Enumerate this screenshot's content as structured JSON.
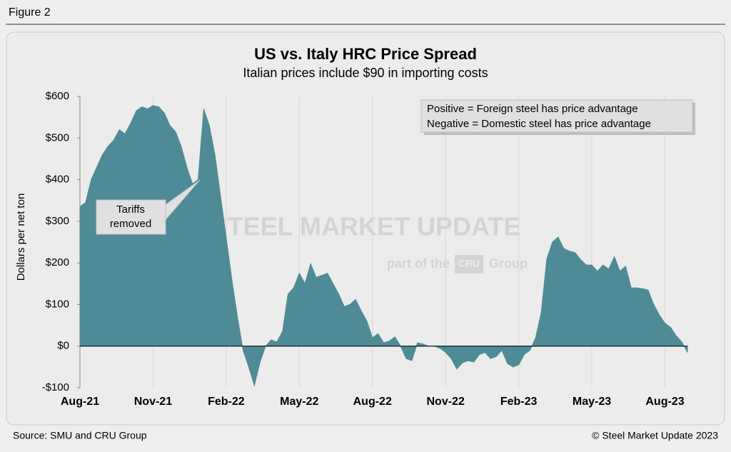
{
  "figure_label": "Figure 2",
  "chart_data": {
    "type": "area",
    "title": "US vs. Italy HRC Price Spread",
    "subtitle": "Italian prices include $90 in importing costs",
    "y_label": "Dollars per net ton",
    "categories": [
      "Aug-21",
      null,
      null,
      null,
      null,
      null,
      null,
      null,
      null,
      null,
      null,
      null,
      null,
      "Nov-21",
      null,
      null,
      null,
      null,
      null,
      null,
      null,
      null,
      null,
      null,
      null,
      null,
      "Feb-22",
      null,
      null,
      null,
      null,
      null,
      null,
      null,
      null,
      null,
      null,
      null,
      null,
      "May-22",
      null,
      null,
      null,
      null,
      null,
      null,
      null,
      null,
      null,
      null,
      null,
      null,
      "Aug-22",
      null,
      null,
      null,
      null,
      null,
      null,
      null,
      null,
      null,
      null,
      null,
      null,
      "Nov-22",
      null,
      null,
      null,
      null,
      null,
      null,
      null,
      null,
      null,
      null,
      null,
      null,
      "Feb-23",
      null,
      null,
      null,
      null,
      null,
      null,
      null,
      null,
      null,
      null,
      null,
      null,
      "May-23",
      null,
      null,
      null,
      null,
      null,
      null,
      null,
      null,
      null,
      null,
      null,
      null,
      "Aug-23",
      null,
      null,
      null,
      null
    ],
    "values": [
      335,
      345,
      400,
      430,
      460,
      480,
      495,
      520,
      510,
      535,
      565,
      575,
      570,
      578,
      575,
      560,
      530,
      515,
      480,
      430,
      390,
      400,
      570,
      530,
      460,
      360,
      260,
      160,
      70,
      -10,
      -50,
      -95,
      -40,
      0,
      15,
      10,
      35,
      125,
      140,
      175,
      150,
      198,
      165,
      170,
      175,
      150,
      125,
      95,
      100,
      112,
      85,
      60,
      20,
      30,
      8,
      12,
      22,
      0,
      -30,
      -35,
      8,
      5,
      0,
      0,
      -5,
      -15,
      -30,
      -55,
      -40,
      -35,
      -38,
      -20,
      -15,
      -30,
      -25,
      -10,
      -42,
      -50,
      -45,
      -20,
      -10,
      20,
      80,
      210,
      250,
      262,
      235,
      228,
      225,
      208,
      195,
      195,
      180,
      195,
      185,
      215,
      180,
      192,
      140,
      140,
      138,
      135,
      100,
      75,
      55,
      45,
      25,
      10,
      -15
    ],
    "color": "#4e8b97",
    "ylim": [
      -100,
      600
    ],
    "yticks": [
      {
        "value": -100,
        "label": "-$100"
      },
      {
        "value": 0,
        "label": "$0"
      },
      {
        "value": 100,
        "label": "$100"
      },
      {
        "value": 200,
        "label": "$200"
      },
      {
        "value": 300,
        "label": "$300"
      },
      {
        "value": 400,
        "label": "$400"
      },
      {
        "value": 500,
        "label": "$500"
      },
      {
        "value": 600,
        "label": "$600"
      }
    ],
    "grid": true,
    "note": [
      "Positive = Foreign steel has price advantage",
      "Negative = Domestic steel has price advantage"
    ],
    "annotation": [
      "Tariffs",
      "removed"
    ],
    "watermark": {
      "brand": "STEEL MARKET UPDATE",
      "part": "part of the",
      "logo": "CRU",
      "group": "Group"
    }
  },
  "footer": {
    "source": "Source: SMU and CRU Group",
    "copyright": "© Steel Market Update 2023"
  }
}
